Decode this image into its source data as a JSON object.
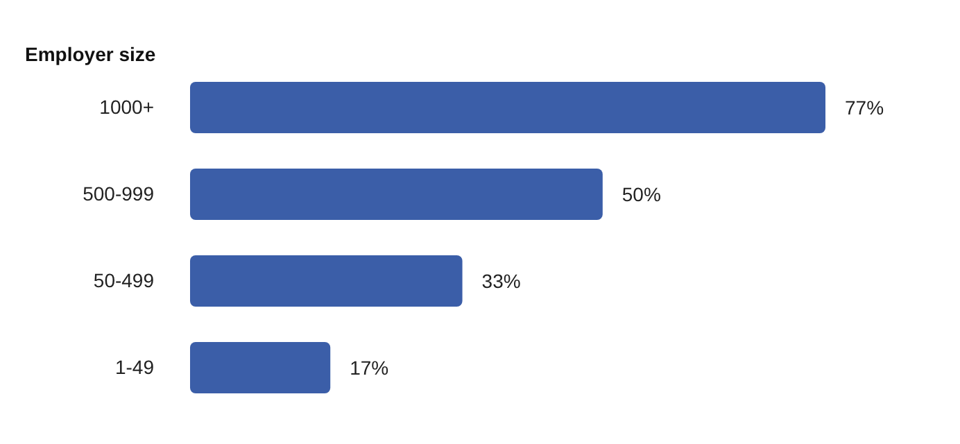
{
  "chart_data": {
    "type": "bar",
    "orientation": "horizontal",
    "title": "Employer size",
    "categories": [
      "1000+",
      "500-999",
      "50-499",
      "1-49"
    ],
    "values": [
      77,
      50,
      33,
      17
    ],
    "color": "#3b5ea8",
    "data_labels": true,
    "value_labels": [
      "77%",
      "50%",
      "33%",
      "17%"
    ]
  }
}
